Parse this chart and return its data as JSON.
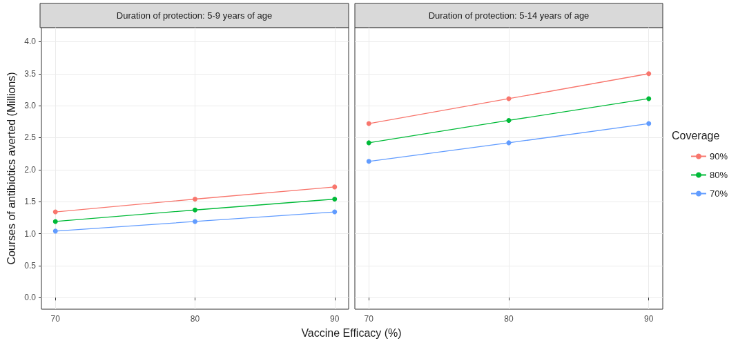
{
  "chart_data": [
    {
      "type": "line",
      "title": "Duration of protection: 5-9 years of age",
      "xlabel": "Vaccine Efficacy (%)",
      "ylabel": "Courses of antibiotics averted (Millions)",
      "x": [
        70,
        80,
        90
      ],
      "xlim": [
        69,
        91
      ],
      "xticks": [
        70,
        80,
        90
      ],
      "ylim": [
        -0.18,
        4.22
      ],
      "yticks": [
        {
          "value": 0,
          "label": "0.0"
        },
        0.5,
        {
          "value": 1,
          "label": "1.0"
        },
        1.5,
        {
          "value": 2,
          "label": "2.0"
        },
        2.5,
        {
          "value": 3,
          "label": "3.0"
        },
        3.5,
        {
          "value": 4,
          "label": "4.0"
        }
      ],
      "grid": true,
      "marker": "circle",
      "legend": false,
      "series": [
        {
          "color": "#f8766d",
          "values": [
            1.34,
            1.54,
            1.73
          ]
        },
        {
          "color": "#00ba38",
          "values": [
            1.19,
            1.37,
            1.54
          ]
        },
        {
          "color": "#619cff",
          "values": [
            1.04,
            1.19,
            1.34
          ]
        }
      ]
    },
    {
      "type": "line",
      "title": "Duration of protection: 5-14 years of age",
      "x": [
        70,
        80,
        90
      ],
      "xlim": [
        69,
        91
      ],
      "xticks": [
        70,
        80,
        90
      ],
      "ylim": [
        -0.18,
        4.22
      ],
      "yticks": [
        {
          "value": 0,
          "label": null
        },
        {
          "value": 0.5,
          "label": null
        },
        {
          "value": 1,
          "label": null
        },
        {
          "value": 1.5,
          "label": null
        },
        {
          "value": 2,
          "label": null
        },
        {
          "value": 2.5,
          "label": null
        },
        {
          "value": 3,
          "label": null
        },
        {
          "value": 3.5,
          "label": null
        },
        {
          "value": 4,
          "label": null
        }
      ],
      "grid": true,
      "marker": "circle",
      "legend": "right",
      "legend_title": "Coverage",
      "tick_labels": "x",
      "series": [
        {
          "name": "90%",
          "color": "#f8766d",
          "values": [
            2.72,
            3.11,
            3.5
          ]
        },
        {
          "name": "80%",
          "color": "#00ba38",
          "values": [
            2.42,
            2.77,
            3.11
          ]
        },
        {
          "name": "70%",
          "color": "#619cff",
          "values": [
            2.13,
            2.42,
            2.72
          ]
        }
      ]
    }
  ]
}
